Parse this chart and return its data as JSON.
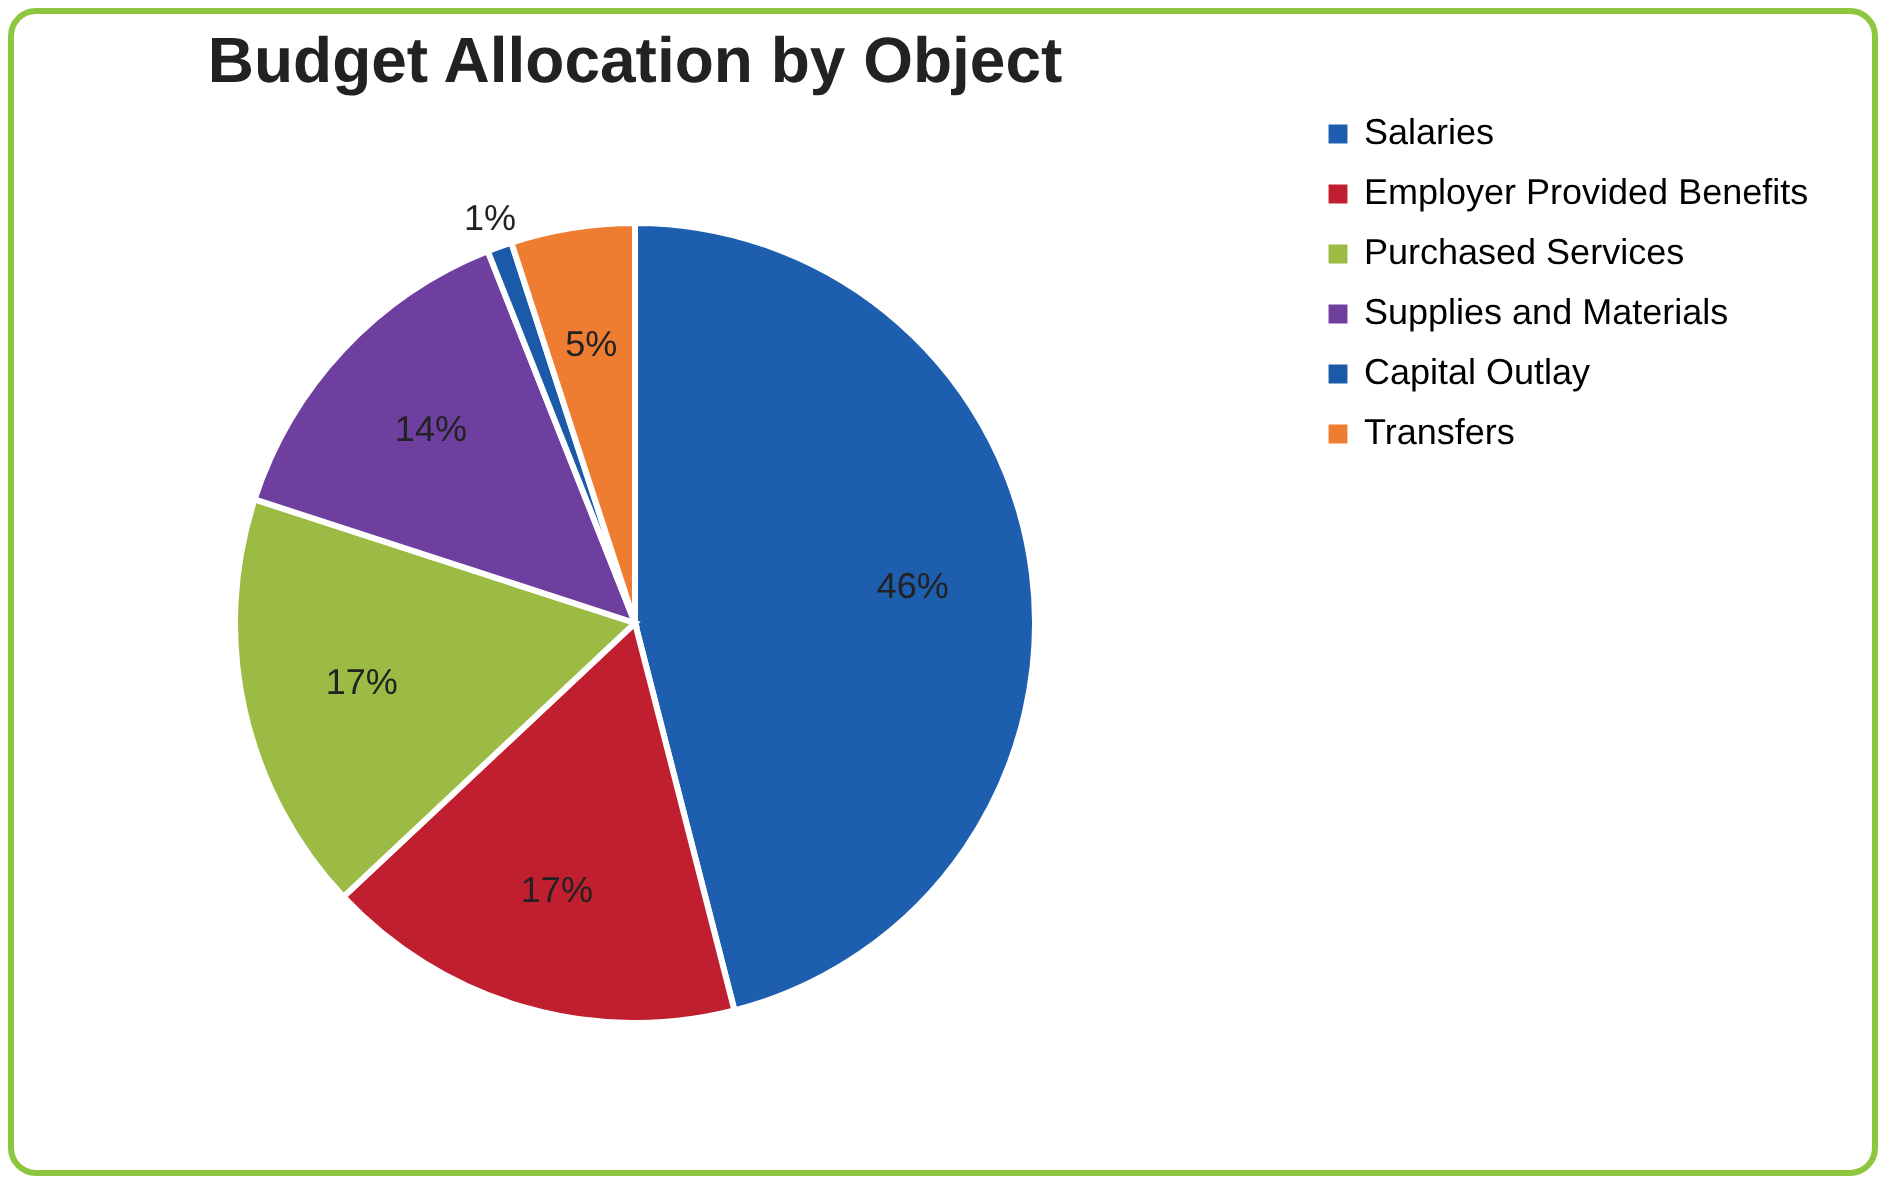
{
  "chart_data": {
    "type": "pie",
    "title": "Budget Allocation by Object",
    "categories": [
      "Salaries",
      "Employer Provided Benefits",
      "Purchased Services",
      "Supplies and Materials",
      "Capital Outlay",
      "Transfers"
    ],
    "values": [
      46,
      17,
      17,
      14,
      1,
      5
    ],
    "colors": [
      "#1d5fae",
      "#c01f2f",
      "#9bbb45",
      "#6e3f9e",
      "#1a5aa8",
      "#ef7d31"
    ],
    "value_labels": [
      "46%",
      "17%",
      "17%",
      "14%",
      "1%",
      "5%"
    ],
    "legend": "right"
  }
}
